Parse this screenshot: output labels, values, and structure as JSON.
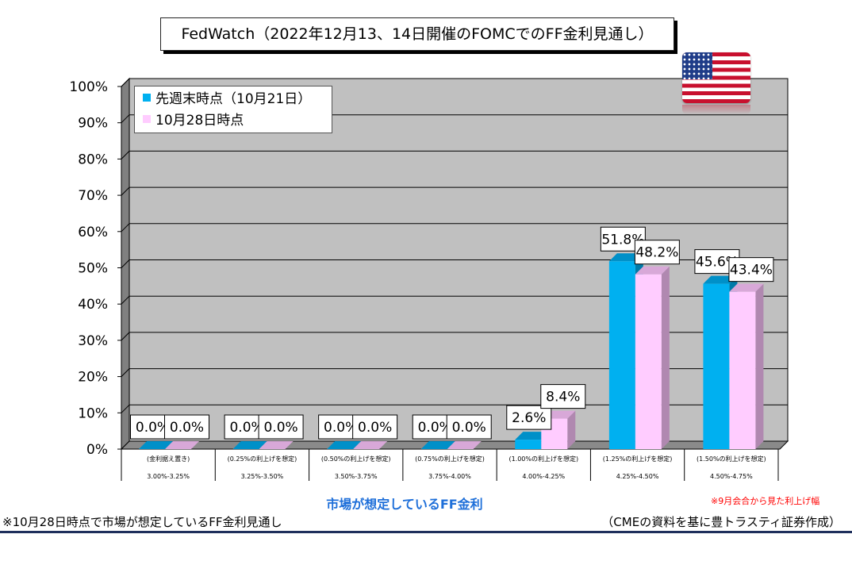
{
  "title": "FedWatch（2022年12月13、14日開催のFOMCでのFF金利見通し）",
  "legend": [
    {
      "label": "先週末時点（10月21日）",
      "color": "#00b0f0"
    },
    {
      "label": "10月28日時点",
      "color": "#ffccff"
    }
  ],
  "chart_data": {
    "type": "bar",
    "categories": [
      {
        "label": "(金利据え置き)",
        "range": "3.00%-3.25%"
      },
      {
        "label": "(0.25%の利上げを想定)",
        "range": "3.25%-3.50%"
      },
      {
        "label": "(0.50%の利上げを想定)",
        "range": "3.50%-3.75%"
      },
      {
        "label": "(0.75%の利上げを想定)",
        "range": "3.75%-4.00%"
      },
      {
        "label": "(1.00%の利上げを想定)",
        "range": "4.00%-4.25%"
      },
      {
        "label": "(1.25%の利上げを想定)",
        "range": "4.25%-4.50%"
      },
      {
        "label": "(1.50%の利上げを想定)",
        "range": "4.50%-4.75%"
      }
    ],
    "series": [
      {
        "name": "先週末時点（10月21日）",
        "values": [
          0.0,
          0.0,
          0.0,
          0.0,
          2.6,
          51.8,
          45.6
        ],
        "labels": [
          "0.0%",
          "0.0%",
          "0.0%",
          "0.0%",
          "2.6%",
          "51.8%",
          "45.6%"
        ]
      },
      {
        "name": "10月28日時点",
        "values": [
          0.0,
          0.0,
          0.0,
          0.0,
          8.4,
          48.2,
          43.4
        ],
        "labels": [
          "0.0%",
          "0.0%",
          "0.0%",
          "0.0%",
          "8.4%",
          "48.2%",
          "43.4%"
        ]
      }
    ],
    "yticks": [
      "0%",
      "10%",
      "20%",
      "30%",
      "40%",
      "50%",
      "60%",
      "70%",
      "80%",
      "90%",
      "100%"
    ],
    "ylim": [
      0,
      100
    ],
    "xlabel": "市場が想定しているFF金利",
    "grid": true,
    "legend_position": "top-left"
  },
  "colors": {
    "series1_front": "#00b0f0",
    "series1_top": "#0090c8",
    "series1_side": "#007aa8",
    "series2_front": "#ffccff",
    "series2_top": "#d8a8d8",
    "series2_side": "#b088b0",
    "plot_back": "#c0c0c0",
    "plot_wall": "#808080",
    "floor": "#8a8a8a"
  },
  "annotations": {
    "note_red": "※9月会合から見た利上げ幅",
    "footnote_left": "※10月28日時点で市場が想定しているFF金利見通し",
    "footnote_right": "（CMEの資料を基に豊トラスティ証券作成）"
  }
}
